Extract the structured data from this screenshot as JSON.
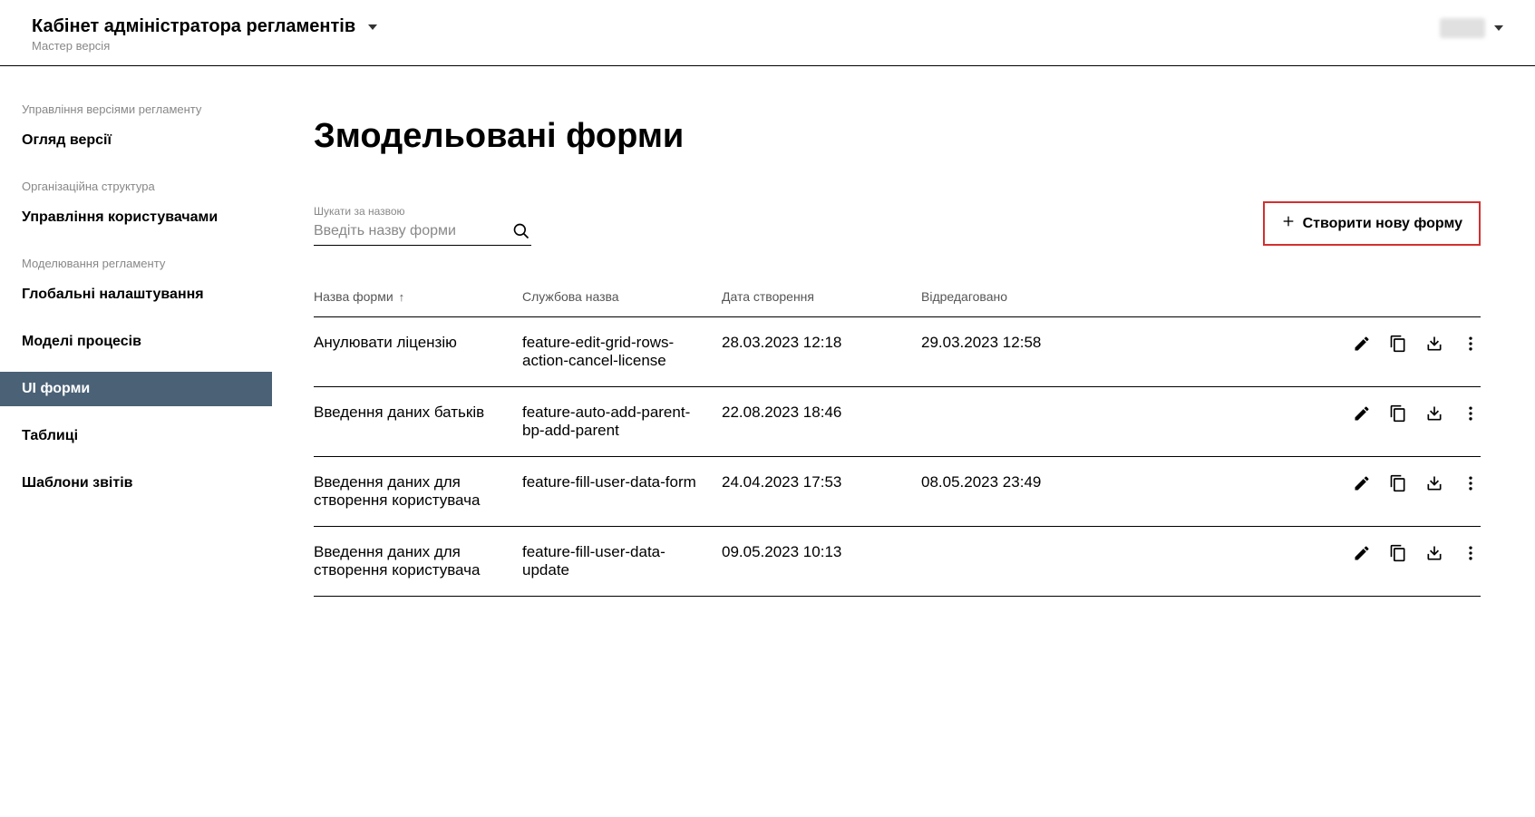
{
  "header": {
    "title": "Кабінет адміністратора регламентів",
    "subtitle": "Мастер версія"
  },
  "sidebar": {
    "sections": [
      {
        "label": "Управління версіями регламенту",
        "items": [
          {
            "id": "version-overview",
            "label": "Огляд версії",
            "active": false
          }
        ]
      },
      {
        "label": "Організаційна структура",
        "items": [
          {
            "id": "user-management",
            "label": "Управління користувачами",
            "active": false
          }
        ]
      },
      {
        "label": "Моделювання регламенту",
        "items": [
          {
            "id": "global-settings",
            "label": "Глобальні налаштування",
            "active": false
          },
          {
            "id": "process-models",
            "label": "Моделі процесів",
            "active": false
          },
          {
            "id": "ui-forms",
            "label": "UI форми",
            "active": true
          },
          {
            "id": "tables",
            "label": "Таблиці",
            "active": false
          },
          {
            "id": "report-templates",
            "label": "Шаблони звітів",
            "active": false
          }
        ]
      }
    ]
  },
  "main": {
    "title": "Змодельовані форми",
    "search": {
      "label": "Шукати за назвою",
      "placeholder": "Введіть назву форми"
    },
    "create_button": "Створити нову форму",
    "columns": [
      "Назва форми",
      "Службова назва",
      "Дата створення",
      "Відредаговано"
    ],
    "sort_indicator": "↑",
    "rows": [
      {
        "name": "Анулювати ліцензію",
        "system_name": "feature-edit-grid-rows-action-cancel-license",
        "created": "28.03.2023 12:18",
        "edited": "29.03.2023 12:58"
      },
      {
        "name": "Введення даних батьків",
        "system_name": "feature-auto-add-parent-bp-add-parent",
        "created": "22.08.2023 18:46",
        "edited": ""
      },
      {
        "name": "Введення даних для створення користувача",
        "system_name": "feature-fill-user-data-form",
        "created": "24.04.2023 17:53",
        "edited": "08.05.2023 23:49"
      },
      {
        "name": "Введення даних для створення користувача",
        "system_name": "feature-fill-user-data-update",
        "created": "09.05.2023 10:13",
        "edited": ""
      }
    ]
  },
  "colors": {
    "sidebar_active_bg": "#4a6176",
    "create_button_border": "#d32f2f",
    "muted_text": "#888888"
  }
}
